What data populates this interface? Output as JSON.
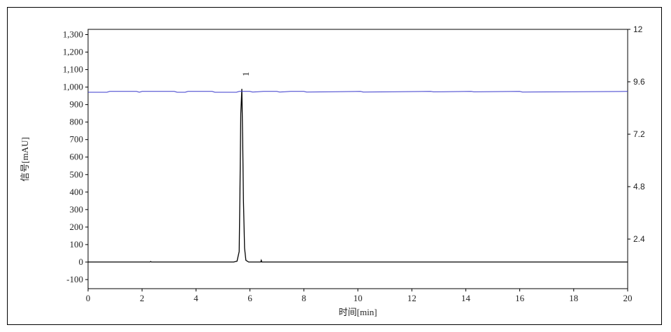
{
  "chart_data": {
    "type": "line",
    "xlabel": "时间[min]",
    "ylabel": "信号[mAU]",
    "xlim": [
      0,
      20
    ],
    "ylim": [
      -152,
      1330
    ],
    "y2lim": [
      0.13,
      12
    ],
    "x_ticks": [
      "0",
      "2",
      "4",
      "6",
      "8",
      "10",
      "12",
      "14",
      "16",
      "18",
      "20"
    ],
    "y_ticks": [
      "-100",
      "0",
      "100",
      "200",
      "300",
      "400",
      "500",
      "600",
      "700",
      "800",
      "900",
      "1,000",
      "1,100",
      "1,200",
      "1,300"
    ],
    "y2_ticks": [
      "2.4",
      "4.8",
      "7.2",
      "9.6",
      "12"
    ],
    "grid": false,
    "series": [
      {
        "axis": "left",
        "color": "#000000",
        "x": [
          0,
          2.3,
          2.32,
          2.35,
          5.4,
          5.52,
          5.6,
          5.63,
          5.66,
          5.7,
          5.73,
          5.76,
          5.8,
          5.85,
          5.95,
          6.4,
          6.42,
          6.44,
          20
        ],
        "y": [
          0,
          0,
          3,
          0,
          0,
          5,
          60,
          400,
          850,
          990,
          700,
          350,
          80,
          10,
          0,
          0,
          10,
          0,
          0
        ]
      },
      {
        "axis": "right",
        "color": "#3a3acc",
        "x": [
          0,
          0.7,
          0.8,
          1.8,
          1.9,
          2.0,
          3.2,
          3.3,
          3.6,
          3.7,
          4.6,
          4.7,
          5.5,
          5.6,
          6.0,
          6.1,
          6.5,
          7.0,
          7.1,
          7.5,
          8.0,
          8.1,
          10.1,
          10.2,
          12.7,
          12.8,
          14.2,
          14.3,
          16.0,
          16.1,
          20
        ],
        "y": [
          9.12,
          9.12,
          9.16,
          9.16,
          9.12,
          9.16,
          9.16,
          9.12,
          9.12,
          9.16,
          9.16,
          9.12,
          9.12,
          9.16,
          9.16,
          9.13,
          9.16,
          9.16,
          9.13,
          9.16,
          9.16,
          9.13,
          9.16,
          9.13,
          9.16,
          9.14,
          9.16,
          9.14,
          9.16,
          9.13,
          9.16
        ]
      }
    ],
    "annotations": [
      {
        "text": "1",
        "x": 5.7
      }
    ]
  }
}
